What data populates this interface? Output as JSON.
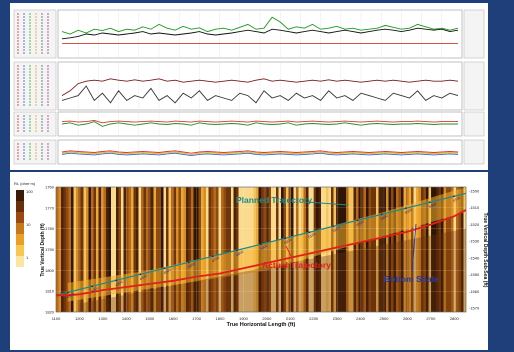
{
  "chart_data": [
    {
      "type": "line",
      "title": "",
      "tracks": [
        {
          "ylabel": "",
          "series": [
            {
              "color": "#1a9a1a",
              "values": [
                0.55,
                0.5,
                0.58,
                0.52,
                0.6,
                0.57,
                0.62,
                0.55,
                0.6,
                0.58,
                0.65,
                0.6,
                0.7,
                0.62,
                0.58,
                0.66,
                0.6,
                0.63,
                0.55,
                0.6,
                0.62,
                0.58,
                0.64,
                0.7,
                0.6,
                0.62,
                0.85,
                0.75,
                0.6,
                0.65,
                0.62,
                0.7,
                0.6,
                0.62,
                0.66,
                0.6,
                0.62,
                0.58,
                0.6,
                0.62,
                0.68,
                0.64,
                0.6,
                0.62,
                0.7,
                0.65,
                0.6,
                0.62,
                0.58,
                0.62
              ]
            },
            {
              "color": "#111111",
              "values": [
                0.4,
                0.42,
                0.45,
                0.5,
                0.48,
                0.52,
                0.5,
                0.48,
                0.5,
                0.52,
                0.55,
                0.5,
                0.52,
                0.5,
                0.48,
                0.5,
                0.52,
                0.55,
                0.5,
                0.48,
                0.5,
                0.52,
                0.55,
                0.58,
                0.55,
                0.52,
                0.6,
                0.58,
                0.55,
                0.52,
                0.55,
                0.58,
                0.55,
                0.52,
                0.55,
                0.58,
                0.55,
                0.52,
                0.55,
                0.58,
                0.6,
                0.58,
                0.55,
                0.58,
                0.62,
                0.6,
                0.58,
                0.6,
                0.55,
                0.58
              ]
            },
            {
              "color": "#d23a2a",
              "values": [
                0.3,
                0.3,
                0.3,
                0.3,
                0.3,
                0.3,
                0.3,
                0.3,
                0.3,
                0.3,
                0.3,
                0.3,
                0.3,
                0.3,
                0.3,
                0.3,
                0.3,
                0.3,
                0.3,
                0.3,
                0.3,
                0.3,
                0.3,
                0.3,
                0.3,
                0.3,
                0.3,
                0.3,
                0.3,
                0.3,
                0.3,
                0.3,
                0.3,
                0.3,
                0.3,
                0.3,
                0.3,
                0.3,
                0.3,
                0.3,
                0.3,
                0.3,
                0.3,
                0.3,
                0.3,
                0.3,
                0.3,
                0.3,
                0.3,
                0.3
              ]
            }
          ]
        },
        {
          "ylabel": "",
          "series": [
            {
              "color": "#7a1a1a",
              "values": [
                0.3,
                0.4,
                0.55,
                0.6,
                0.62,
                0.6,
                0.65,
                0.62,
                0.6,
                0.63,
                0.6,
                0.62,
                0.65,
                0.6,
                0.62,
                0.58,
                0.6,
                0.62,
                0.6,
                0.58,
                0.6,
                0.62,
                0.6,
                0.58,
                0.62,
                0.65,
                0.6,
                0.62,
                0.6,
                0.58,
                0.6,
                0.62,
                0.6,
                0.63,
                0.6,
                0.62,
                0.6,
                0.58,
                0.6,
                0.62,
                0.6,
                0.62,
                0.6,
                0.58,
                0.6,
                0.62,
                0.6,
                0.6,
                0.62,
                0.6
              ]
            },
            {
              "color": "#333333",
              "values": [
                0.2,
                0.25,
                0.3,
                0.5,
                0.2,
                0.35,
                0.15,
                0.4,
                0.2,
                0.3,
                0.25,
                0.45,
                0.2,
                0.3,
                0.15,
                0.35,
                0.25,
                0.4,
                0.2,
                0.3,
                0.25,
                0.2,
                0.35,
                0.3,
                0.15,
                0.4,
                0.25,
                0.3,
                0.2,
                0.35,
                0.25,
                0.3,
                0.2,
                0.4,
                0.25,
                0.3,
                0.2,
                0.35,
                0.3,
                0.25,
                0.2,
                0.35,
                0.3,
                0.25,
                0.4,
                0.2,
                0.3,
                0.25,
                0.35,
                0.3
              ]
            }
          ]
        },
        {
          "ylabel": "",
          "series": [
            {
              "color": "#2a8a2a",
              "values": [
                0.5,
                0.55,
                0.45,
                0.5,
                0.6,
                0.4,
                0.5,
                0.55,
                0.5,
                0.45,
                0.5,
                0.55,
                0.5,
                0.48,
                0.52,
                0.5,
                0.45,
                0.55,
                0.5,
                0.48,
                0.5,
                0.52,
                0.5,
                0.45,
                0.55,
                0.5,
                0.48,
                0.5,
                0.55,
                0.45,
                0.5,
                0.52,
                0.5,
                0.48,
                0.5,
                0.55,
                0.5,
                0.45,
                0.5,
                0.52,
                0.5,
                0.48,
                0.5,
                0.5,
                0.52,
                0.5,
                0.48,
                0.5,
                0.5,
                0.5
              ]
            },
            {
              "color": "#d23a2a",
              "values": [
                0.6,
                0.62,
                0.58,
                0.6,
                0.65,
                0.55,
                0.6,
                0.62,
                0.6,
                0.58,
                0.6,
                0.62,
                0.6,
                0.58,
                0.62,
                0.6,
                0.58,
                0.62,
                0.6,
                0.58,
                0.6,
                0.62,
                0.6,
                0.58,
                0.62,
                0.6,
                0.58,
                0.6,
                0.62,
                0.58,
                0.6,
                0.62,
                0.6,
                0.58,
                0.6,
                0.62,
                0.6,
                0.58,
                0.6,
                0.62,
                0.6,
                0.58,
                0.6,
                0.6,
                0.62,
                0.6,
                0.58,
                0.6,
                0.6,
                0.6
              ]
            }
          ]
        },
        {
          "ylabel": "",
          "series": [
            {
              "color": "#d23a2a",
              "values": [
                0.5,
                0.55,
                0.52,
                0.5,
                0.48,
                0.52,
                0.55,
                0.5,
                0.48,
                0.5,
                0.52,
                0.5,
                0.48,
                0.52,
                0.55,
                0.5,
                0.45,
                0.5,
                0.52,
                0.5,
                0.48,
                0.5,
                0.52,
                0.55,
                0.5,
                0.48,
                0.5,
                0.52,
                0.5,
                0.48,
                0.5,
                0.52,
                0.55,
                0.5,
                0.48,
                0.5,
                0.52,
                0.5,
                0.48,
                0.5,
                0.52,
                0.5,
                0.48,
                0.5,
                0.52,
                0.5,
                0.48,
                0.5,
                0.52,
                0.5
              ]
            },
            {
              "color": "#2a6ad2",
              "values": [
                0.4,
                0.45,
                0.42,
                0.4,
                0.38,
                0.42,
                0.45,
                0.4,
                0.38,
                0.4,
                0.42,
                0.4,
                0.38,
                0.42,
                0.45,
                0.4,
                0.35,
                0.4,
                0.42,
                0.4,
                0.38,
                0.4,
                0.42,
                0.45,
                0.4,
                0.38,
                0.4,
                0.42,
                0.4,
                0.38,
                0.4,
                0.42,
                0.45,
                0.4,
                0.38,
                0.4,
                0.42,
                0.4,
                0.38,
                0.4,
                0.42,
                0.4,
                0.38,
                0.4,
                0.42,
                0.4,
                0.38,
                0.4,
                0.42,
                0.4
              ]
            },
            {
              "color": "#e0b020",
              "values": [
                0.45,
                0.5,
                0.47,
                0.45,
                0.43,
                0.47,
                0.5,
                0.45,
                0.43,
                0.45,
                0.47,
                0.45,
                0.43,
                0.47,
                0.5,
                0.45,
                0.4,
                0.45,
                0.47,
                0.45,
                0.43,
                0.45,
                0.47,
                0.5,
                0.45,
                0.43,
                0.45,
                0.47,
                0.45,
                0.43,
                0.45,
                0.47,
                0.5,
                0.45,
                0.43,
                0.45,
                0.47,
                0.45,
                0.43,
                0.45,
                0.47,
                0.45,
                0.43,
                0.45,
                0.47,
                0.45,
                0.43,
                0.45,
                0.47,
                0.45
              ]
            }
          ]
        }
      ]
    },
    {
      "type": "line",
      "title": "",
      "xlabel": "True Horizontal Length (ft)",
      "ylabel": "True Vertical Depth (ft)",
      "ylabel_right": "True Vertical Depth Sub-Sea (ft)",
      "xlim": [
        1100,
        2850
      ],
      "ylim": [
        1820,
        1760
      ],
      "xticks": [
        "1100",
        "1200",
        "1300",
        "1400",
        "1500",
        "1600",
        "1700",
        "1800",
        "1900",
        "2000",
        "2100",
        "2200",
        "2300",
        "2400",
        "2500",
        "2600",
        "2700",
        "2800"
      ],
      "yticks": [
        "1760",
        "1770",
        "1780",
        "1790",
        "1800",
        "1810",
        "1820"
      ],
      "yticks_right": [
        "-1500",
        "-1510",
        "-1520",
        "-1530",
        "-1540",
        "-1550",
        "-1560",
        "-1570"
      ],
      "colorbar_label": "RL (ohm·m)",
      "colorbar_ticks": [
        "100",
        "10",
        "1"
      ],
      "annotations": [
        {
          "text": "Planned Trajectory",
          "color": "#1a8a8a"
        },
        {
          "text": "Actual Trajectory",
          "color": "#e0201a"
        },
        {
          "text": "Bottom Shale",
          "color": "#2a3aa0"
        }
      ],
      "md_labels": [
        "4100",
        "4200",
        "4300",
        "4400",
        "4500",
        "4600",
        "4700",
        "4800",
        "4900",
        "5000",
        "5100",
        "5200",
        "5300",
        "5400",
        "5500",
        "5600",
        "5700"
      ],
      "series": [
        {
          "name": "Planned Trajectory",
          "color": "#1a8a8a",
          "x": [
            1100,
            2850
          ],
          "y": [
            1812,
            1763
          ]
        },
        {
          "name": "Actual Trajectory",
          "color": "#e0201a",
          "x": [
            1100,
            1150,
            1200,
            1300,
            1400,
            1500,
            1600,
            1700,
            1800,
            1900,
            2000,
            2100,
            2200,
            2300,
            2400,
            2500,
            2600,
            2700,
            2800,
            2850
          ],
          "y": [
            1812,
            1812,
            1811.5,
            1809.5,
            1808,
            1806.5,
            1805,
            1803,
            1801.5,
            1799,
            1796.5,
            1794,
            1791.5,
            1789,
            1786.5,
            1784,
            1781.5,
            1778,
            1774,
            1771
          ]
        }
      ]
    }
  ]
}
